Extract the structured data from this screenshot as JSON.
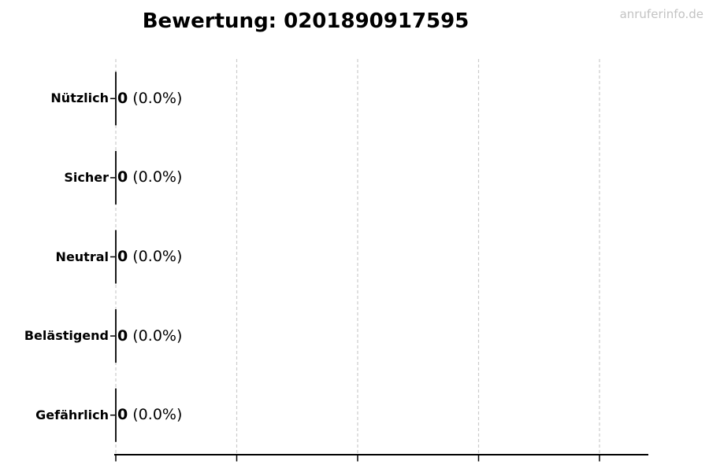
{
  "page": {
    "title": "Bewertung: 0201890917595",
    "watermark": "anruferinfo.de"
  },
  "colors": {
    "background": "#ffffff",
    "text": "#000000",
    "grid": "#cccccc",
    "axis": "#000000",
    "bar_edge": "#000000",
    "watermark": "#c3c3c3"
  },
  "chart_data": {
    "type": "bar",
    "orientation": "horizontal",
    "title": "Bewertung: 0201890917595",
    "categories": [
      "Nützlich",
      "Sicher",
      "Neutral",
      "Belästigend",
      "Gefährlich"
    ],
    "values": [
      0,
      0,
      0,
      0,
      0
    ],
    "value_labels": [
      {
        "count": "0",
        "percent": " (0.0%)"
      },
      {
        "count": "0",
        "percent": " (0.0%)"
      },
      {
        "count": "0",
        "percent": " (0.0%)"
      },
      {
        "count": "0",
        "percent": " (0.0%)"
      },
      {
        "count": "0",
        "percent": " (0.0%)"
      }
    ],
    "xlabel": "",
    "ylabel": "",
    "x_tick_labels_visible": false,
    "grid": "vertical-dashed",
    "legend": "none",
    "bar_fill": "none",
    "bar_edge_color": "#000000"
  }
}
